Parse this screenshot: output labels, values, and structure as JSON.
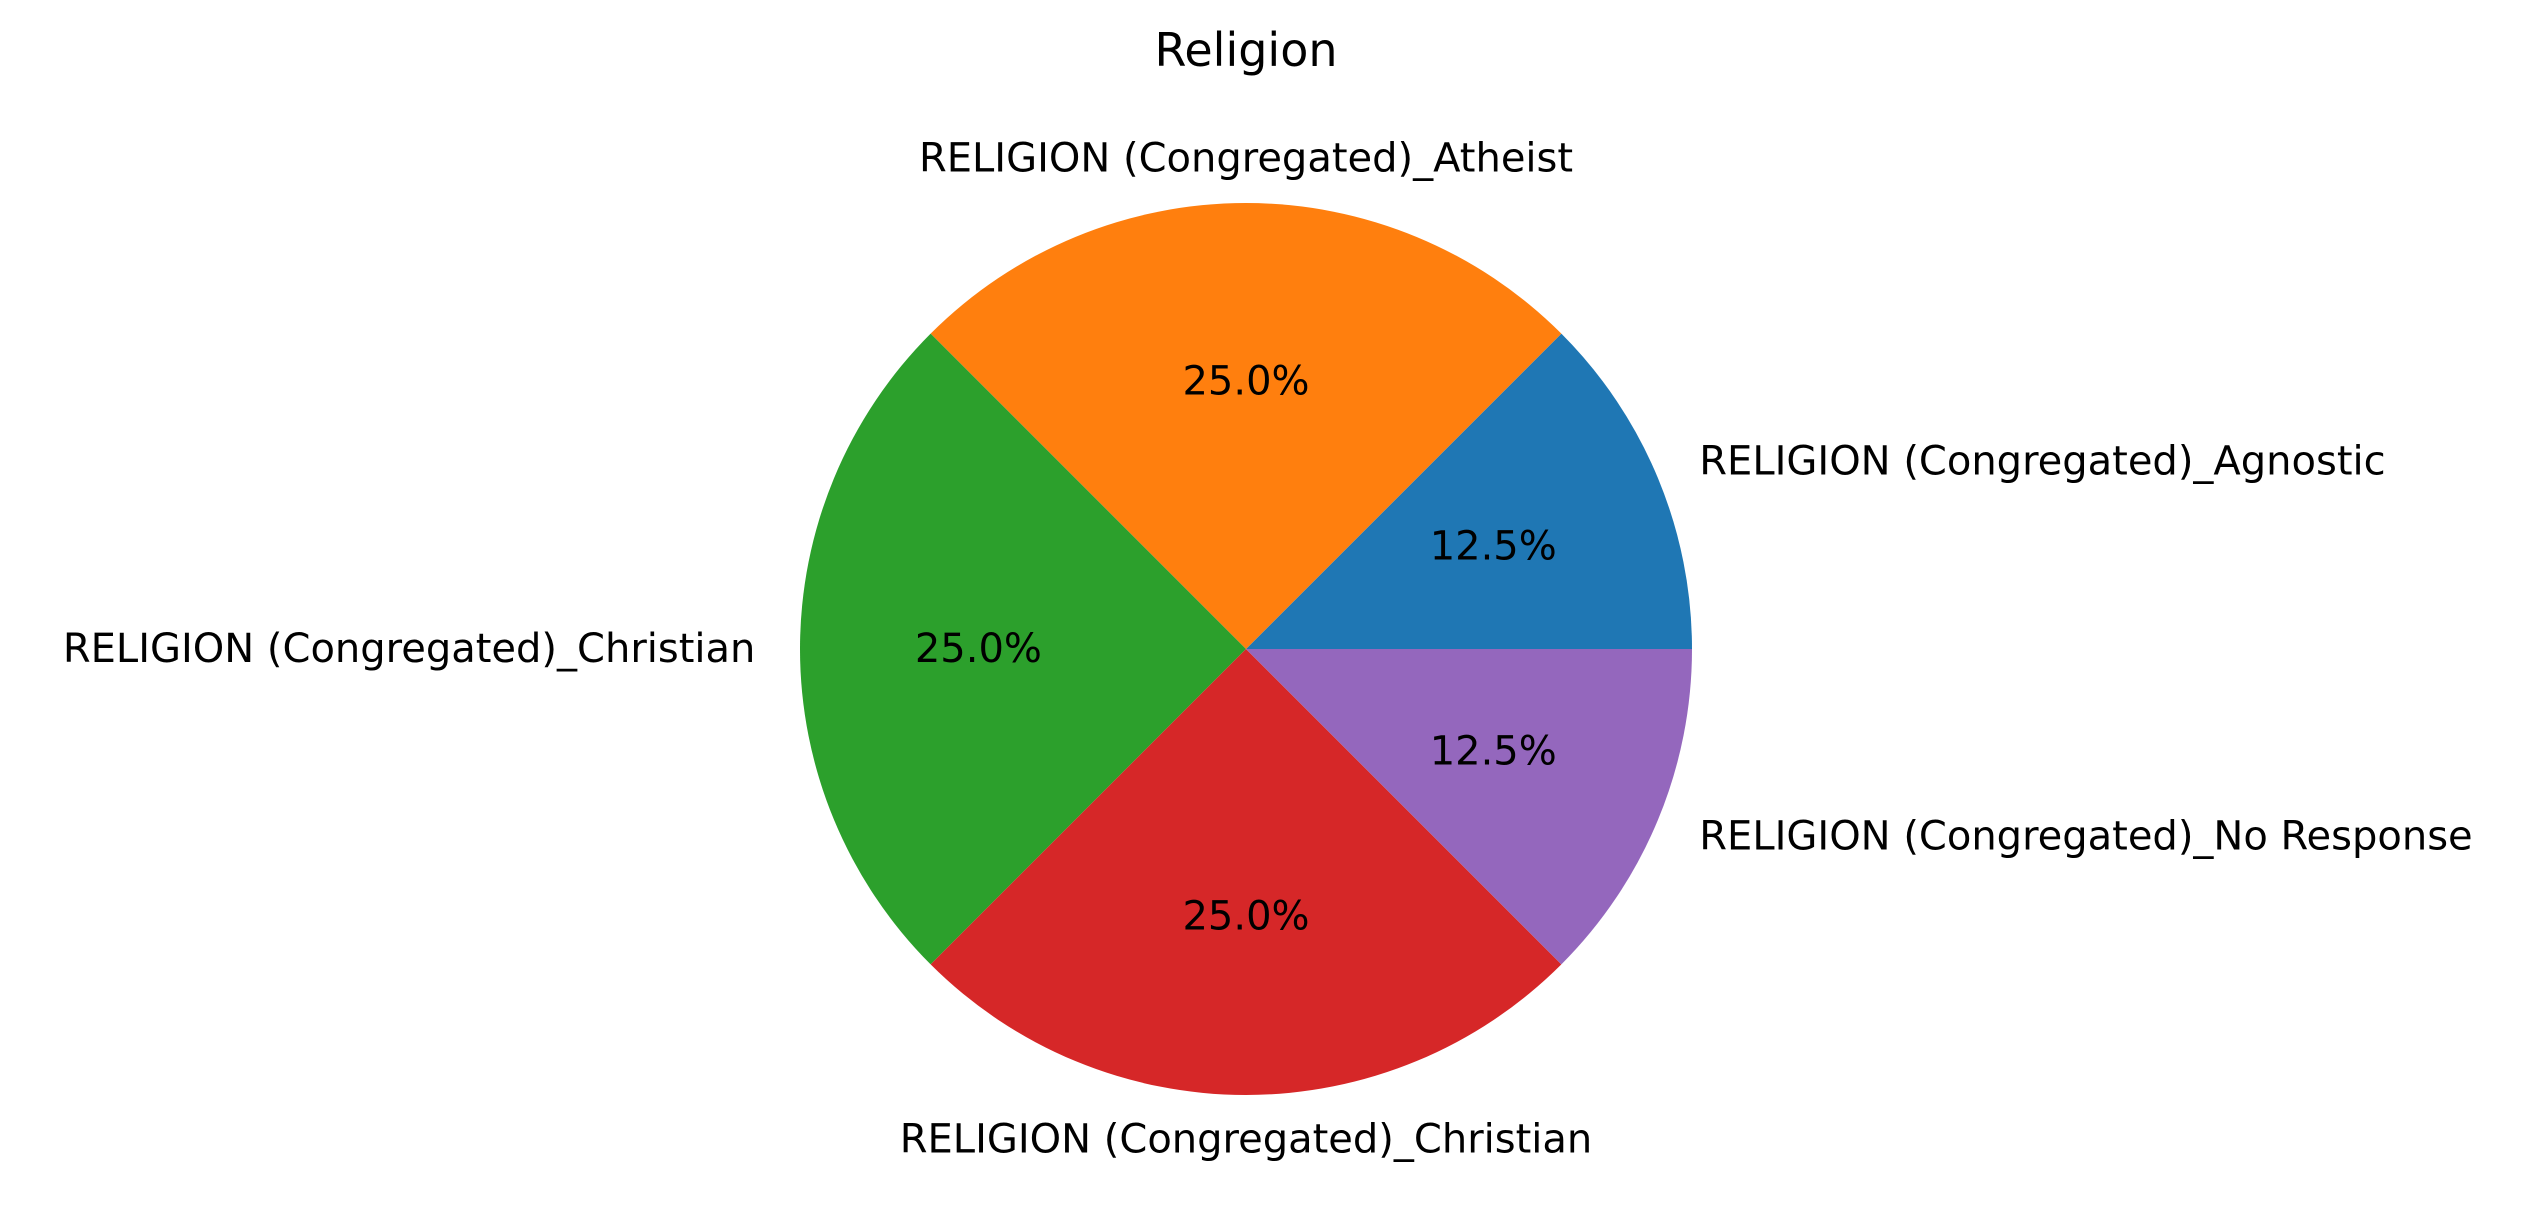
{
  "chart_data": {
    "type": "pie",
    "title": "Religion",
    "start_angle_deg": 0,
    "direction": "counterclockwise",
    "slices": [
      {
        "label": "RELIGION (Congregated)_Agnostic",
        "value": 12.5,
        "pct_text": "12.5%",
        "color": "#1f77b4"
      },
      {
        "label": "RELIGION (Congregated)_Atheist",
        "value": 25.0,
        "pct_text": "25.0%",
        "color": "#ff7f0e"
      },
      {
        "label": "RELIGION (Congregated)_Christian",
        "value": 25.0,
        "pct_text": "25.0%",
        "color": "#2ca02c"
      },
      {
        "label": "RELIGION (Congregated)_Christian",
        "value": 25.0,
        "pct_text": "25.0%",
        "color": "#d62728"
      },
      {
        "label": "RELIGION (Congregated)_No Response",
        "value": 12.5,
        "pct_text": "12.5%",
        "color": "#9467bd"
      }
    ]
  }
}
